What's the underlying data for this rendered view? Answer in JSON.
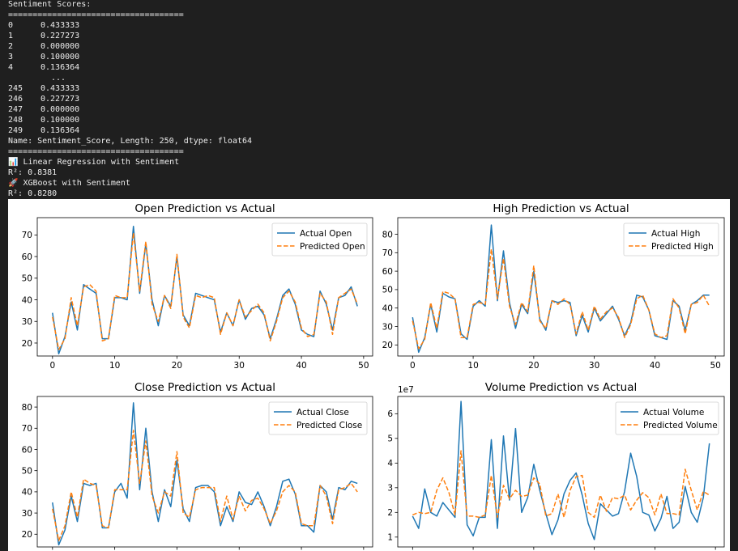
{
  "console": {
    "header": "Sentiment Scores:",
    "separator": "====================================",
    "head_rows": [
      {
        "i": "0",
        "v": "0.433333"
      },
      {
        "i": "1",
        "v": "0.227273"
      },
      {
        "i": "2",
        "v": "0.000000"
      },
      {
        "i": "3",
        "v": "0.100000"
      },
      {
        "i": "4",
        "v": "0.136364"
      }
    ],
    "ellipsis": "...",
    "tail_rows": [
      {
        "i": "245",
        "v": "0.433333"
      },
      {
        "i": "246",
        "v": "0.227273"
      },
      {
        "i": "247",
        "v": "0.000000"
      },
      {
        "i": "248",
        "v": "0.100000"
      },
      {
        "i": "249",
        "v": "0.136364"
      }
    ],
    "name_line": "Name: Sentiment_Score, Length: 250, dtype: float64",
    "separator2": "====================================",
    "lr_line": "📊 Linear Regression with Sentiment",
    "lr_r2": "R²: 0.8381",
    "xgb_line": "🚀 XGBoost with Sentiment",
    "xgb_r2": "R²: 0.8280"
  },
  "colors": {
    "actual": "#1f77b4",
    "predicted": "#ff7f0e"
  },
  "chart_data": [
    {
      "type": "line",
      "title": "Open Prediction vs Actual",
      "xlim": [
        -2.45,
        51.45
      ],
      "ylim": [
        14,
        78
      ],
      "xticks": [
        0,
        10,
        20,
        30,
        40,
        50
      ],
      "yticks": [
        20,
        30,
        40,
        50,
        60,
        70
      ],
      "legend_location": "upper right",
      "series": [
        {
          "name": "Actual Open",
          "style": "solid",
          "values": [
            34,
            15,
            23,
            39,
            26,
            47,
            45,
            43,
            22,
            22,
            41,
            41,
            40,
            74,
            43,
            66,
            40,
            28,
            42,
            37,
            60,
            33,
            28,
            43,
            42,
            41,
            40,
            25,
            34,
            28,
            40,
            31,
            36,
            37,
            33,
            22,
            31,
            42,
            45,
            38,
            26,
            24,
            23,
            44,
            38,
            26,
            41,
            42,
            46,
            37
          ]
        },
        {
          "name": "Predicted Open",
          "style": "dashed",
          "values": [
            32,
            17,
            22,
            41,
            28,
            46,
            47,
            44,
            21,
            22,
            42,
            41,
            41,
            71,
            44,
            67,
            38,
            30,
            42,
            36,
            61,
            32,
            27,
            42,
            41,
            42,
            41,
            24,
            34,
            28,
            40,
            32,
            35,
            38,
            34,
            21,
            30,
            41,
            44,
            39,
            27,
            23,
            24,
            43,
            39,
            24,
            41,
            43,
            45,
            38
          ]
        }
      ]
    },
    {
      "type": "line",
      "title": "High Prediction vs Actual",
      "xlim": [
        -2.45,
        51.45
      ],
      "ylim": [
        14,
        89
      ],
      "xticks": [
        0,
        10,
        20,
        30,
        40,
        50
      ],
      "yticks": [
        20,
        30,
        40,
        50,
        60,
        70,
        80
      ],
      "legend_location": "upper right",
      "series": [
        {
          "name": "Actual High",
          "style": "solid",
          "values": [
            35,
            16,
            24,
            42,
            27,
            48,
            46,
            45,
            26,
            23,
            41,
            44,
            41,
            85,
            44,
            71,
            43,
            29,
            42,
            37,
            60,
            34,
            28,
            44,
            43,
            44,
            43,
            25,
            36,
            27,
            40,
            33,
            37,
            41,
            34,
            25,
            32,
            47,
            46,
            39,
            25,
            24,
            23,
            44,
            41,
            28,
            42,
            44,
            47,
            47
          ]
        },
        {
          "name": "Predicted High",
          "style": "dashed",
          "values": [
            33,
            18,
            23,
            43,
            29,
            49,
            48,
            45,
            24,
            24,
            42,
            43,
            42,
            72,
            45,
            67,
            41,
            31,
            43,
            38,
            63,
            33,
            29,
            44,
            42,
            45,
            42,
            26,
            38,
            28,
            41,
            34,
            38,
            40,
            35,
            24,
            31,
            45,
            47,
            39,
            26,
            24,
            25,
            45,
            40,
            26,
            42,
            43,
            47,
            41
          ]
        }
      ]
    },
    {
      "type": "line",
      "title": "Close Prediction vs Actual",
      "xlim": [
        -2.45,
        51.45
      ],
      "ylim": [
        14,
        85
      ],
      "xticks": [
        0,
        10,
        20,
        30,
        40,
        50
      ],
      "yticks": [
        20,
        30,
        40,
        50,
        60,
        70,
        80
      ],
      "legend_location": "upper right",
      "series": [
        {
          "name": "Actual Close",
          "style": "solid",
          "values": [
            35,
            15,
            22,
            38,
            26,
            44,
            43,
            44,
            23,
            23,
            40,
            44,
            37,
            82,
            41,
            70,
            40,
            26,
            41,
            33,
            55,
            32,
            26,
            42,
            43,
            43,
            40,
            24,
            33,
            26,
            40,
            35,
            34,
            40,
            33,
            24,
            33,
            45,
            46,
            39,
            24,
            24,
            21,
            43,
            40,
            27,
            42,
            41,
            45,
            44
          ]
        },
        {
          "name": "Predicted Close",
          "style": "dashed",
          "values": [
            32,
            17,
            24,
            40,
            28,
            46,
            44,
            43,
            24,
            23,
            41,
            41,
            41,
            69,
            44,
            64,
            38,
            30,
            40,
            38,
            59,
            30,
            28,
            41,
            42,
            42,
            42,
            26,
            38,
            27,
            38,
            31,
            36,
            37,
            32,
            25,
            31,
            40,
            43,
            40,
            25,
            24,
            24,
            43,
            38,
            25,
            41,
            42,
            44,
            40
          ]
        }
      ]
    },
    {
      "type": "line",
      "title": "Volume Prediction vs Actual",
      "offset_label": "1e7",
      "xlim": [
        -2.45,
        51.45
      ],
      "ylim": [
        0.6,
        6.7
      ],
      "xticks": [
        0,
        10,
        20,
        30,
        40,
        50
      ],
      "yticks": [
        1,
        2,
        3,
        4,
        5,
        6
      ],
      "legend_location": "upper right",
      "series": [
        {
          "name": "Actual Volume",
          "style": "solid",
          "values": [
            1.85,
            1.35,
            2.95,
            2.0,
            1.85,
            2.4,
            2.1,
            1.8,
            6.5,
            1.5,
            1.05,
            1.8,
            1.8,
            4.95,
            1.35,
            5.1,
            2.5,
            5.4,
            2.0,
            2.6,
            3.95,
            2.9,
            1.95,
            1.1,
            1.7,
            2.75,
            3.3,
            3.6,
            2.7,
            1.55,
            0.9,
            2.35,
            2.1,
            1.85,
            1.95,
            2.85,
            4.4,
            3.45,
            2.0,
            1.9,
            1.25,
            1.75,
            2.65,
            1.35,
            1.6,
            3.05,
            2.0,
            1.6,
            2.6,
            4.8
          ]
        },
        {
          "name": "Predicted Volume",
          "style": "dashed",
          "values": [
            1.9,
            2.0,
            1.95,
            2.0,
            2.9,
            3.4,
            2.8,
            1.9,
            4.5,
            1.85,
            1.85,
            1.8,
            1.9,
            3.5,
            1.8,
            3.1,
            2.55,
            2.9,
            2.65,
            2.7,
            3.4,
            3.15,
            1.85,
            1.95,
            2.75,
            1.8,
            2.9,
            3.45,
            3.5,
            2.0,
            1.8,
            2.7,
            2.05,
            2.6,
            2.55,
            2.7,
            2.1,
            2.5,
            2.8,
            2.6,
            1.9,
            2.75,
            1.95,
            1.95,
            1.9,
            3.75,
            2.9,
            2.1,
            2.85,
            2.7
          ]
        }
      ]
    }
  ]
}
